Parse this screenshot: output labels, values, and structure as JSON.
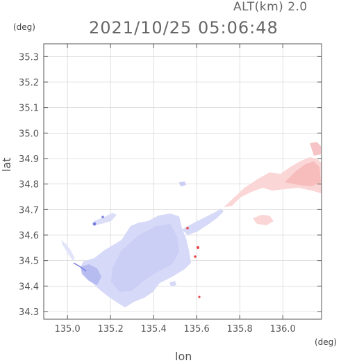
{
  "header": {
    "altitude_label": "ALT(km) 2.0",
    "timestamp": "2021/10/25 05:06:48"
  },
  "axes": {
    "x_label": "lon",
    "y_label": "lat",
    "x_unit": "(deg)",
    "y_unit": "(deg)"
  },
  "colors": {
    "frame": "#555555",
    "grid": "#cccccc",
    "blue_region": "#d6d9f7",
    "blue_dark": "#b9bdf0",
    "blue_edge": "#7a80e0",
    "red_region": "#fbd6d6",
    "red_dark": "#f6b9b9",
    "red_dot": "#e84545"
  },
  "chart_data": {
    "type": "heatmap",
    "title": "2021/10/25 05:06:48",
    "subtitle": "ALT(km) 2.0",
    "xlabel": "lon",
    "ylabel": "lat",
    "xlim": [
      134.89,
      136.18
    ],
    "ylim": [
      34.27,
      35.35
    ],
    "x_ticks": [
      "135.0",
      "135.2",
      "135.4",
      "135.6",
      "135.8",
      "136.0"
    ],
    "y_ticks": [
      "35.3",
      "35.2",
      "35.1",
      "35.0",
      "34.9",
      "34.8",
      "34.7",
      "34.6",
      "34.5",
      "34.4",
      "34.3"
    ],
    "grid": true
  }
}
